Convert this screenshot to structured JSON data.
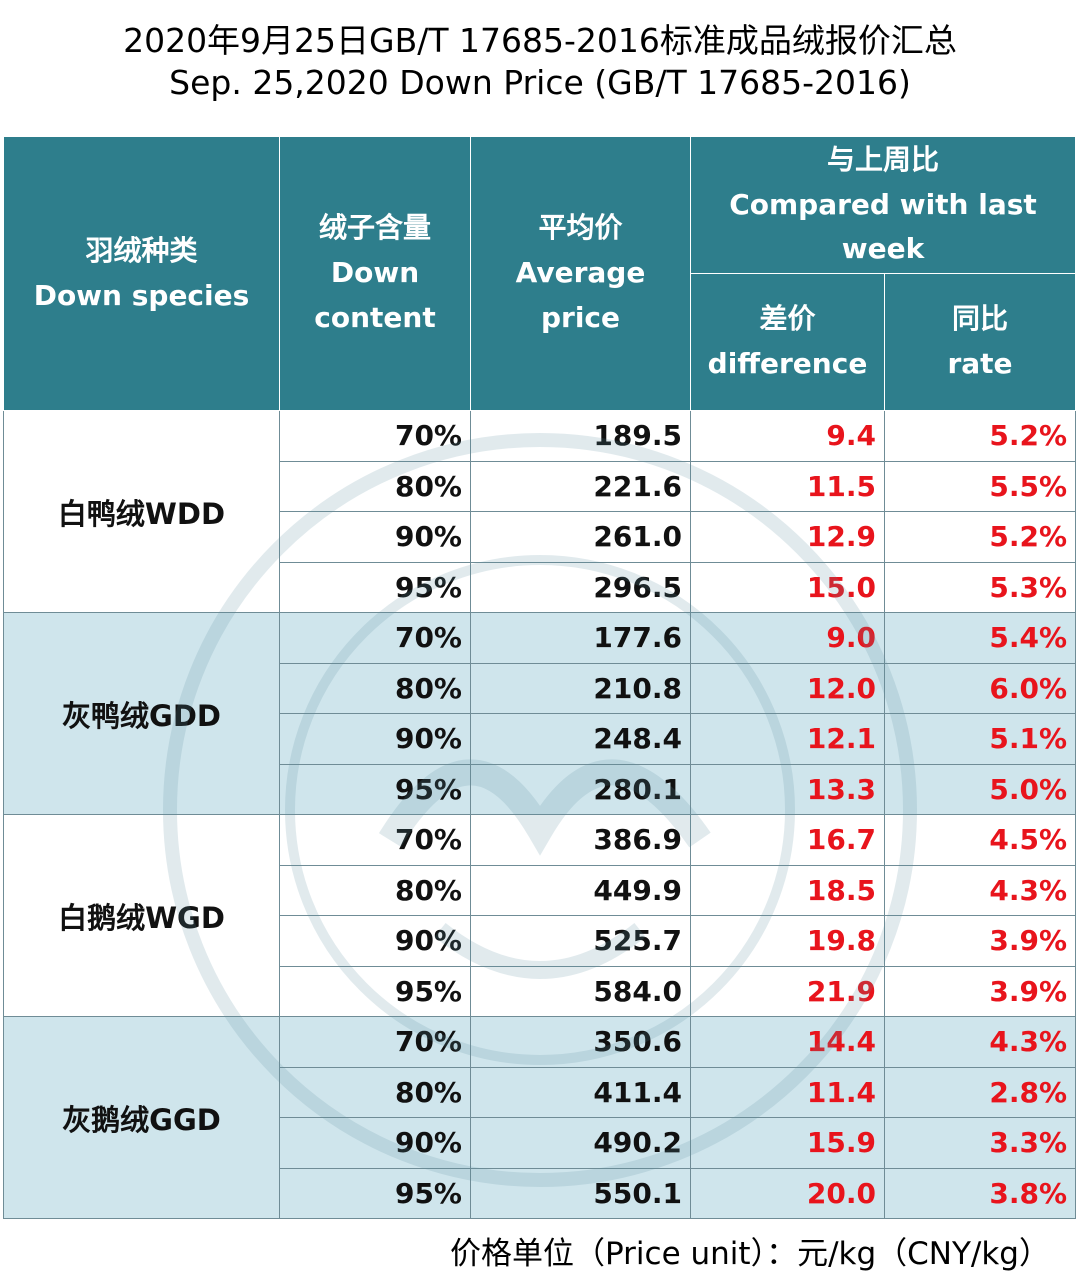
{
  "title_zh": "2020年9月25日GB/T 17685-2016标准成品绒报价汇总",
  "title_en": "Sep. 25,2020 Down Price (GB/T 17685-2016)",
  "headers": {
    "species_zh": "羽绒种类",
    "species_en": "Down species",
    "content_zh": "绒子含量",
    "content_en1": "Down",
    "content_en2": "content",
    "avg_zh": "平均价",
    "avg_en1": "Average",
    "avg_en2": "price",
    "compare_zh": "与上周比",
    "compare_en1": "Compared with last",
    "compare_en2": "week",
    "diff_zh": "差价",
    "diff_en": "difference",
    "rate_zh": "同比",
    "rate_en": "rate"
  },
  "groups": [
    {
      "species": "白鸭绒WDD",
      "rows": [
        {
          "content": "70%",
          "price": "189.5",
          "diff": "9.4",
          "rate": "5.2%"
        },
        {
          "content": "80%",
          "price": "221.6",
          "diff": "11.5",
          "rate": "5.5%"
        },
        {
          "content": "90%",
          "price": "261.0",
          "diff": "12.9",
          "rate": "5.2%"
        },
        {
          "content": "95%",
          "price": "296.5",
          "diff": "15.0",
          "rate": "5.3%"
        }
      ]
    },
    {
      "species": "灰鸭绒GDD",
      "rows": [
        {
          "content": "70%",
          "price": "177.6",
          "diff": "9.0",
          "rate": "5.4%"
        },
        {
          "content": "80%",
          "price": "210.8",
          "diff": "12.0",
          "rate": "6.0%"
        },
        {
          "content": "90%",
          "price": "248.4",
          "diff": "12.1",
          "rate": "5.1%"
        },
        {
          "content": "95%",
          "price": "280.1",
          "diff": "13.3",
          "rate": "5.0%"
        }
      ]
    },
    {
      "species": "白鹅绒WGD",
      "rows": [
        {
          "content": "70%",
          "price": "386.9",
          "diff": "16.7",
          "rate": "4.5%"
        },
        {
          "content": "80%",
          "price": "449.9",
          "diff": "18.5",
          "rate": "4.3%"
        },
        {
          "content": "90%",
          "price": "525.7",
          "diff": "19.8",
          "rate": "3.9%"
        },
        {
          "content": "95%",
          "price": "584.0",
          "diff": "21.9",
          "rate": "3.9%"
        }
      ]
    },
    {
      "species": "灰鹅绒GGD",
      "rows": [
        {
          "content": "70%",
          "price": "350.6",
          "diff": "14.4",
          "rate": "4.3%"
        },
        {
          "content": "80%",
          "price": "411.4",
          "diff": "11.4",
          "rate": "2.8%"
        },
        {
          "content": "90%",
          "price": "490.2",
          "diff": "15.9",
          "rate": "3.3%"
        },
        {
          "content": "95%",
          "price": "550.1",
          "diff": "20.0",
          "rate": "3.8%"
        }
      ]
    }
  ],
  "footnote": "价格单位（Price unit）：元/kg（CNY/kg）",
  "colors": {
    "header_bg": "#2e7e8c",
    "band_bg": "#cfe5ec",
    "red_text": "#e8141c"
  }
}
